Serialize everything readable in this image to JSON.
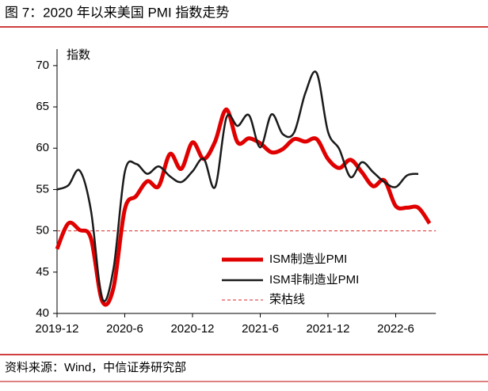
{
  "title": "图 7：2020 年以来美国 PMI 指数走势",
  "source": "资料来源：Wind，中信证券研究部",
  "chart_data": {
    "type": "line",
    "y_label": "指数",
    "categories": [
      "2019-12",
      null,
      null,
      null,
      null,
      null,
      "2020-6",
      null,
      null,
      null,
      null,
      null,
      "2020-12",
      null,
      null,
      null,
      null,
      null,
      "2021-6",
      null,
      null,
      null,
      null,
      null,
      "2021-12",
      null,
      null,
      null,
      null,
      null,
      "2022-6",
      null,
      null,
      null
    ],
    "series": [
      {
        "name": "ISM制造业PMI",
        "color": "#e00000",
        "values": [
          47.8,
          50.9,
          50.1,
          49.1,
          41.5,
          43.1,
          52.6,
          54.2,
          56.0,
          55.4,
          59.3,
          57.5,
          60.7,
          58.7,
          60.8,
          64.7,
          60.7,
          61.2,
          60.6,
          59.5,
          59.9,
          61.1,
          60.8,
          61.1,
          58.7,
          57.6,
          58.6,
          57.1,
          55.4,
          56.1,
          53.0,
          52.8,
          52.8,
          50.9
        ]
      },
      {
        "name": "ISM非制造业PMI",
        "color": "#1a1a1a",
        "values": [
          55.0,
          55.5,
          57.3,
          52.5,
          41.8,
          45.4,
          57.1,
          58.1,
          56.9,
          57.8,
          56.6,
          55.9,
          57.2,
          58.7,
          55.3,
          63.7,
          62.7,
          64.0,
          60.1,
          64.1,
          61.7,
          61.9,
          66.7,
          69.1,
          62.0,
          59.9,
          56.5,
          58.3,
          57.1,
          55.9,
          55.3,
          56.7,
          56.9,
          null
        ]
      }
    ],
    "reference_line": {
      "name": "荣枯线",
      "value": 50,
      "color": "#e05050"
    },
    "ylim": [
      40,
      72
    ],
    "yticks": [
      40,
      45,
      50,
      55,
      60,
      65,
      70
    ]
  }
}
